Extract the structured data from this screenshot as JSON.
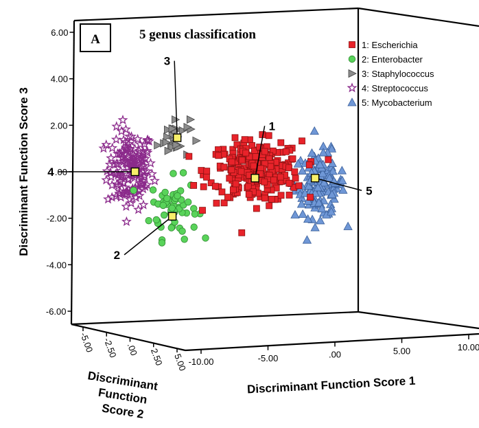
{
  "chart_data": {
    "type": "scatter",
    "title": "5 genus classification",
    "panel_label": "A",
    "xlabel": "Discriminant Function Score 1",
    "ylabel": "Discriminant Function Score 3",
    "zlabel_lines": [
      "Discriminant",
      "Function",
      "Score 2"
    ],
    "xlim": [
      -12,
      10
    ],
    "ylim": [
      -6.8,
      6.8
    ],
    "zlim": [
      -5,
      5
    ],
    "x_ticks": [
      "-10.00",
      "-5.00",
      ".00",
      "5.00",
      "10.00"
    ],
    "y_ticks": [
      "6.00",
      "4.00",
      "2.00",
      ".00",
      "-2.00",
      "-4.00",
      "-6.00"
    ],
    "z_ticks": [
      "-5.00",
      "-2.50",
      ".00",
      "2.50",
      "5.00"
    ],
    "grid": false,
    "legend_position": "top-right",
    "series": [
      {
        "name": "1: Escherichia",
        "marker": "square",
        "color": "#e8232a",
        "center": [
          -2.2,
          0.0
        ],
        "spread": [
          2.6,
          1.3
        ],
        "count": 260,
        "centroid": [
          -2.2,
          -0.3
        ]
      },
      {
        "name": "2: Enterobacter",
        "marker": "circle",
        "color": "#59d35a",
        "center": [
          -7.2,
          -1.7
        ],
        "spread": [
          1.3,
          1.3
        ],
        "count": 60,
        "centroid": [
          -7.3,
          -2.1
        ]
      },
      {
        "name": "3: Staphylococcus",
        "marker": "triangle-right",
        "color": "#8c8c8c",
        "center": [
          -7.2,
          1.6
        ],
        "spread": [
          0.9,
          0.9
        ],
        "count": 30,
        "centroid": [
          -7.0,
          1.6
        ]
      },
      {
        "name": "4: Streptococcus",
        "marker": "star",
        "color": "#8b2a8b",
        "center": [
          -9.9,
          0.1
        ],
        "spread": [
          1.3,
          1.7
        ],
        "count": 150,
        "centroid": [
          -9.6,
          0.0
        ]
      },
      {
        "name": "5: Mycobacterium",
        "marker": "triangle-up",
        "color": "#6f97d6",
        "center": [
          1.8,
          -0.6
        ],
        "spread": [
          1.4,
          1.4
        ],
        "count": 140,
        "centroid": [
          1.5,
          -0.3
        ]
      }
    ],
    "callouts": [
      "1",
      "2",
      "3",
      "4",
      "5"
    ]
  }
}
